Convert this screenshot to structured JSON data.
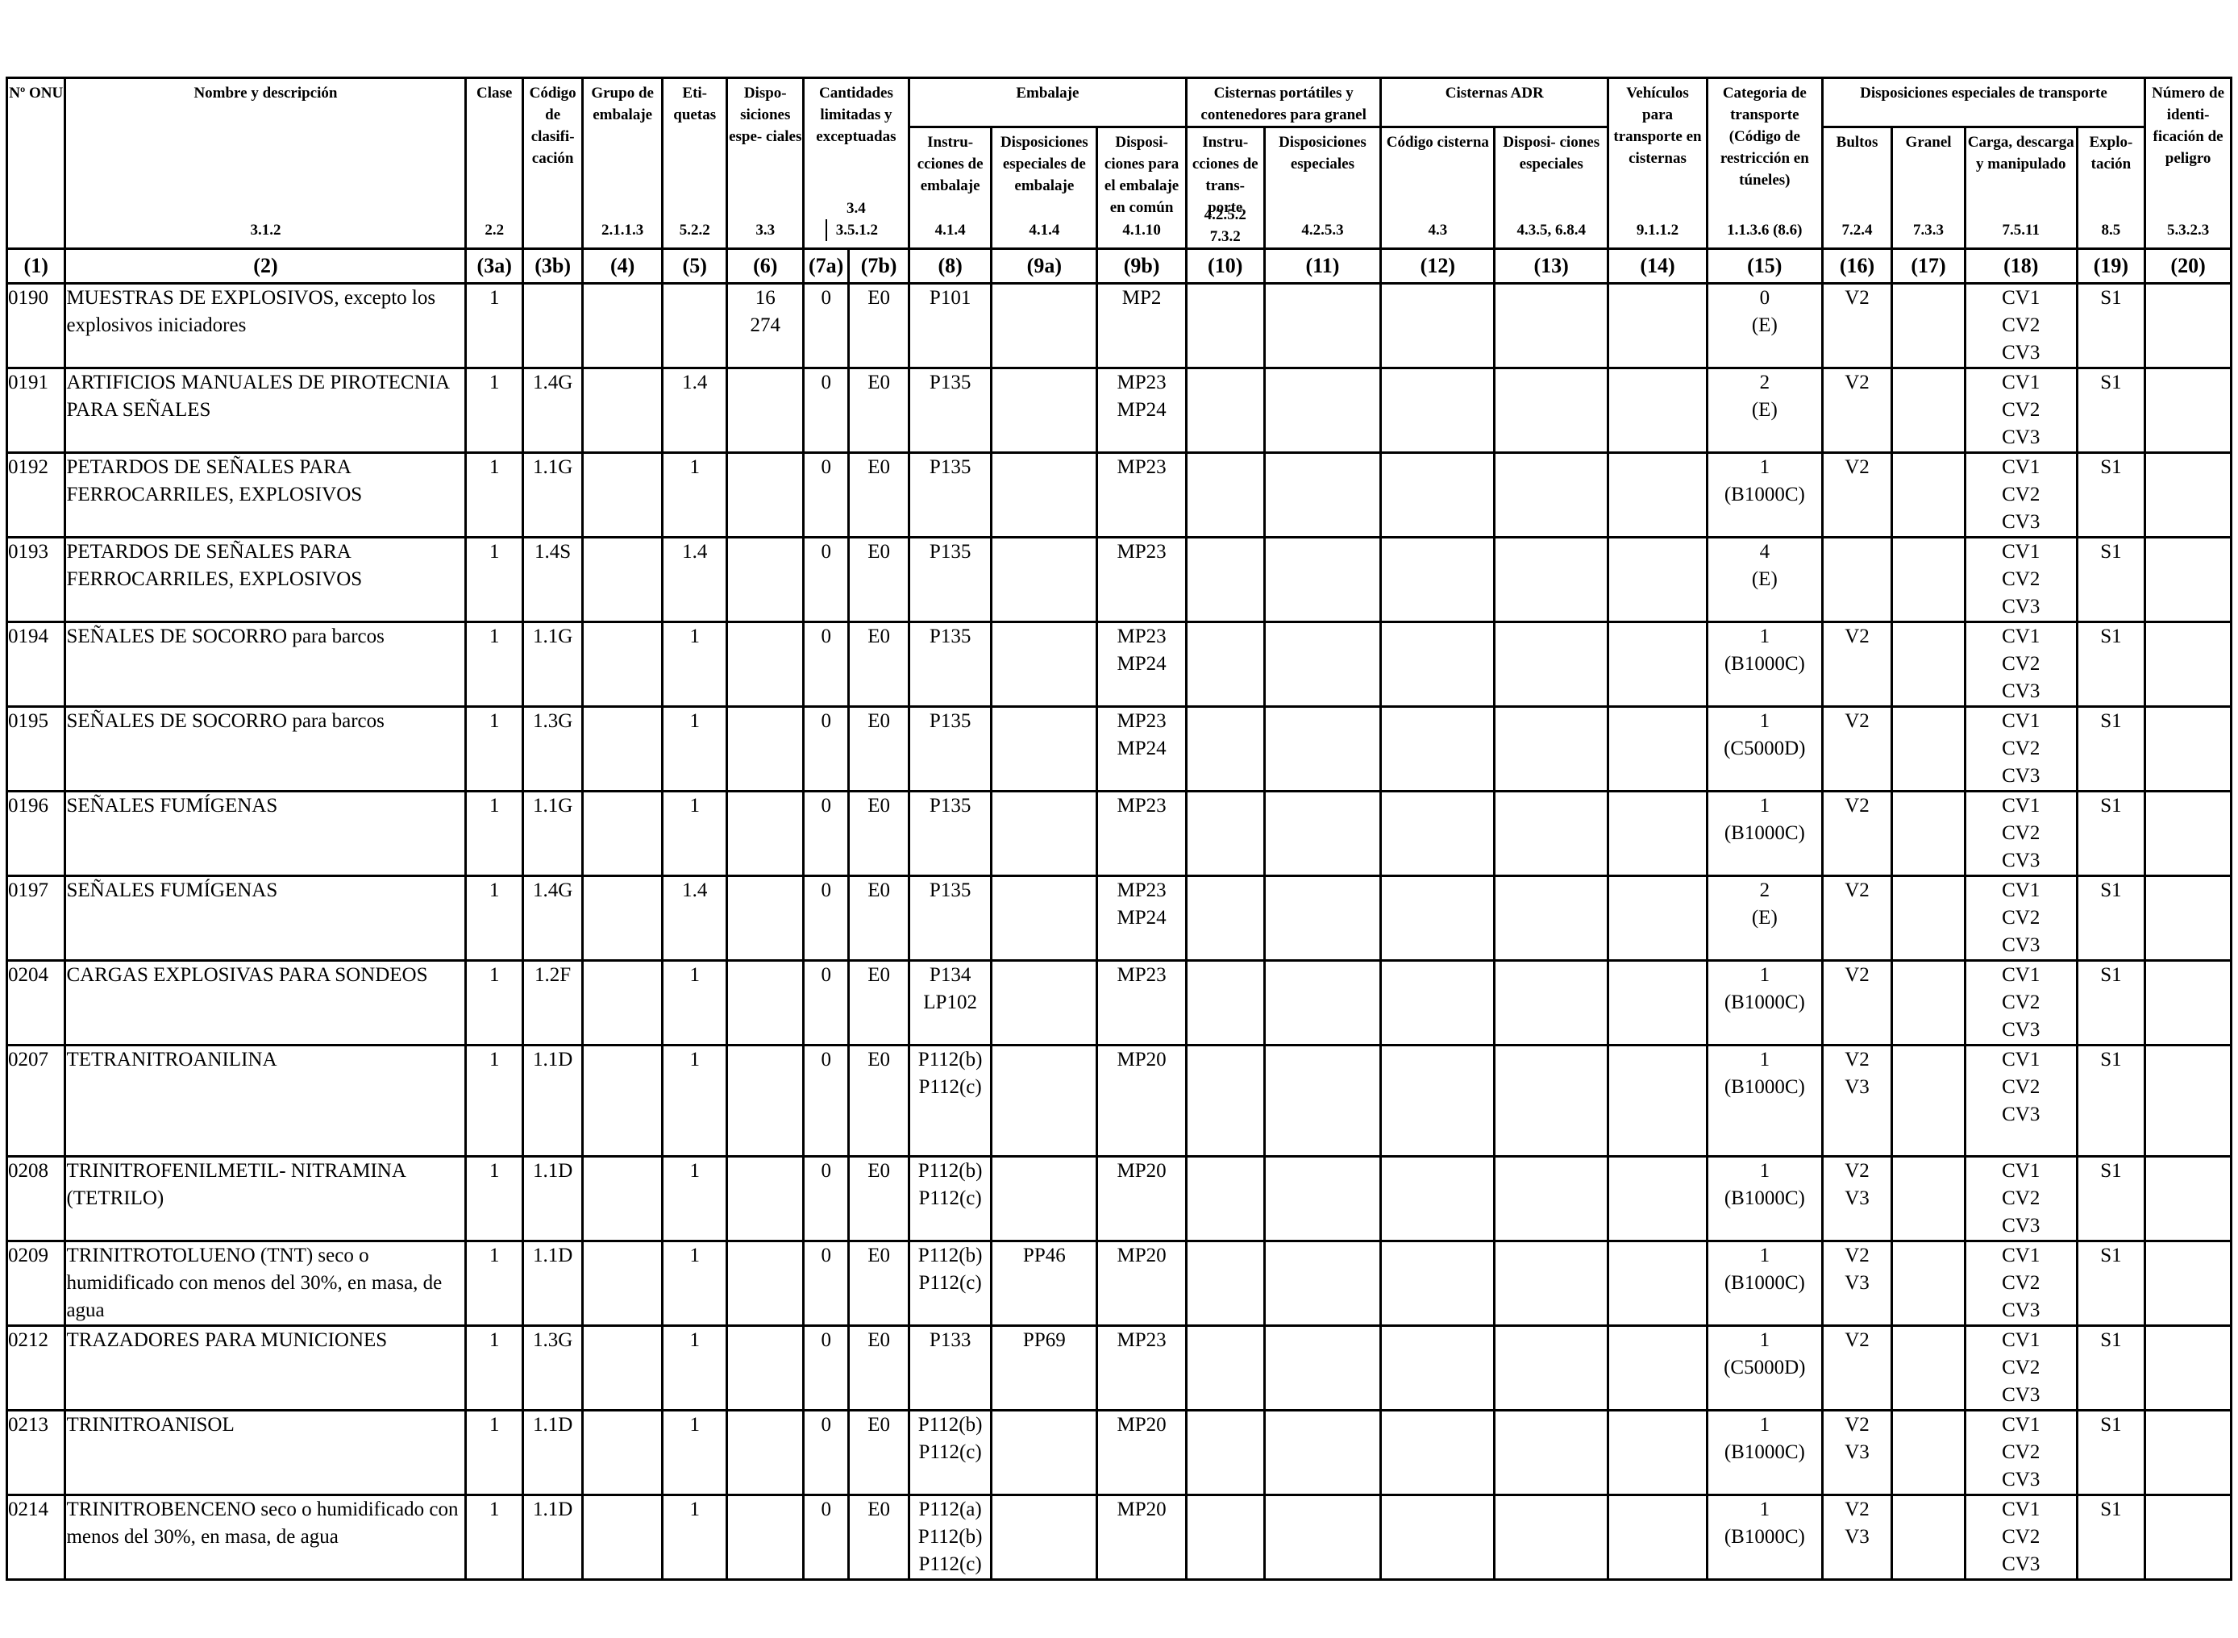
{
  "header": {
    "col1": {
      "title": "Nº ONU",
      "ref": ""
    },
    "col2": {
      "title": "Nombre y descripción",
      "ref": "3.1.2"
    },
    "col3a": {
      "title": "Clase",
      "ref": "2.2"
    },
    "col3b": {
      "title": "Código de clasifi- cación",
      "ref": ""
    },
    "col4": {
      "title": "Grupo de embalaje",
      "ref": "2.1.1.3"
    },
    "col5": {
      "title": "Eti- quetas",
      "ref": "5.2.2"
    },
    "col6": {
      "title": "Dispo- siciones espe- ciales",
      "ref": "3.3"
    },
    "col7": {
      "title": "Cantidades limitadas y exceptuadas",
      "ref_a": "3.4",
      "ref_b": "3.5.1.2"
    },
    "embalaje": {
      "title": "Embalaje"
    },
    "col8": {
      "title": "Instru- cciones de embalaje",
      "ref": "4.1.4"
    },
    "col9a": {
      "title": "Disposiciones especiales de embalaje",
      "ref": "4.1.4"
    },
    "col9b": {
      "title": "Disposi- ciones para el embalaje en común",
      "ref": "4.1.10"
    },
    "cisternas_portatiles": {
      "title": "Cisternas portátiles y contenedores para granel"
    },
    "col10": {
      "title": "Instru- cciones de trans- porte",
      "ref": "4.2.5.2 7.3.2"
    },
    "col11": {
      "title": "Disposiciones especiales",
      "ref": "4.2.5.3"
    },
    "cisternas_adr": {
      "title": "Cisternas ADR"
    },
    "col12": {
      "title": "Código cisterna",
      "ref": "4.3"
    },
    "col13": {
      "title": "Disposi- ciones especiales",
      "ref": "4.3.5, 6.8.4"
    },
    "col14": {
      "title": "Vehículos para transporte en cisternas",
      "ref": "9.1.1.2"
    },
    "col15": {
      "title": "Categoria de transporte (Código de restricción en túneles)",
      "ref": "1.1.3.6 (8.6)"
    },
    "disp_transporte": {
      "title": "Disposiciones especiales de transporte"
    },
    "col16": {
      "title": "Bultos",
      "ref": "7.2.4"
    },
    "col17": {
      "title": "Granel",
      "ref": "7.3.3"
    },
    "col18": {
      "title": "Carga, descarga y manipulado",
      "ref": "7.5.11"
    },
    "col19": {
      "title": "Explo- tación",
      "ref": "8.5"
    },
    "col20": {
      "title": "Número de identi- ficación de peligro",
      "ref": "5.3.2.3"
    }
  },
  "col_numbers": [
    "(1)",
    "(2)",
    "(3a)",
    "(3b)",
    "(4)",
    "(5)",
    "(6)",
    "(7a)",
    "(7b)",
    "(8)",
    "(9a)",
    "(9b)",
    "(10)",
    "(11)",
    "(12)",
    "(13)",
    "(14)",
    "(15)",
    "(16)",
    "(17)",
    "(18)",
    "(19)",
    "(20)"
  ],
  "rows": [
    {
      "un": "0190",
      "name": "MUESTRAS DE EXPLOSIVOS, excepto los explosivos iniciadores",
      "clase": "1",
      "codigo": "",
      "grupo": "",
      "etiquetas": "",
      "disp_esp": "16 274",
      "c7a": "0",
      "c7b": "E0",
      "instr": "P101",
      "disp_emb": "",
      "emb_comun": "MP2",
      "c10": "",
      "c11": "",
      "c12": "",
      "c13": "",
      "c14": "",
      "cat1": "0",
      "cat2": "(E)",
      "bultos": "V2",
      "granel": "",
      "carga": "CV1 CV2 CV3",
      "explot": "S1",
      "num_id": ""
    },
    {
      "un": "0191",
      "name": "ARTIFICIOS MANUALES DE PIROTECNIA PARA SEÑALES",
      "clase": "1",
      "codigo": "1.4G",
      "grupo": "",
      "etiquetas": "1.4",
      "disp_esp": "",
      "c7a": "0",
      "c7b": "E0",
      "instr": "P135",
      "disp_emb": "",
      "emb_comun": "MP23 MP24",
      "c10": "",
      "c11": "",
      "c12": "",
      "c13": "",
      "c14": "",
      "cat1": "2",
      "cat2": "(E)",
      "bultos": "V2",
      "granel": "",
      "carga": "CV1 CV2 CV3",
      "explot": "S1",
      "num_id": ""
    },
    {
      "un": "0192",
      "name": "PETARDOS DE SEÑALES PARA FERROCARRILES, EXPLOSIVOS",
      "clase": "1",
      "codigo": "1.1G",
      "grupo": "",
      "etiquetas": "1",
      "disp_esp": "",
      "c7a": "0",
      "c7b": "E0",
      "instr": "P135",
      "disp_emb": "",
      "emb_comun": "MP23",
      "c10": "",
      "c11": "",
      "c12": "",
      "c13": "",
      "c14": "",
      "cat1": "1",
      "cat2": "(B1000C)",
      "bultos": "V2",
      "granel": "",
      "carga": "CV1 CV2 CV3",
      "explot": "S1",
      "num_id": ""
    },
    {
      "un": "0193",
      "name": "PETARDOS DE SEÑALES PARA FERROCARRILES, EXPLOSIVOS",
      "clase": "1",
      "codigo": "1.4S",
      "grupo": "",
      "etiquetas": "1.4",
      "disp_esp": "",
      "c7a": "0",
      "c7b": "E0",
      "instr": "P135",
      "disp_emb": "",
      "emb_comun": "MP23",
      "c10": "",
      "c11": "",
      "c12": "",
      "c13": "",
      "c14": "",
      "cat1": "4",
      "cat2": "(E)",
      "bultos": "",
      "granel": "",
      "carga": "CV1 CV2 CV3",
      "explot": "S1",
      "num_id": ""
    },
    {
      "un": "0194",
      "name": "SEÑALES DE SOCORRO para barcos",
      "clase": "1",
      "codigo": "1.1G",
      "grupo": "",
      "etiquetas": "1",
      "disp_esp": "",
      "c7a": "0",
      "c7b": "E0",
      "instr": "P135",
      "disp_emb": "",
      "emb_comun": "MP23 MP24",
      "c10": "",
      "c11": "",
      "c12": "",
      "c13": "",
      "c14": "",
      "cat1": "1",
      "cat2": "(B1000C)",
      "bultos": "V2",
      "granel": "",
      "carga": "CV1 CV2 CV3",
      "explot": "S1",
      "num_id": ""
    },
    {
      "un": "0195",
      "name": "SEÑALES DE SOCORRO para barcos",
      "clase": "1",
      "codigo": "1.3G",
      "grupo": "",
      "etiquetas": "1",
      "disp_esp": "",
      "c7a": "0",
      "c7b": "E0",
      "instr": "P135",
      "disp_emb": "",
      "emb_comun": "MP23 MP24",
      "c10": "",
      "c11": "",
      "c12": "",
      "c13": "",
      "c14": "",
      "cat1": "1",
      "cat2": "(C5000D)",
      "bultos": "V2",
      "granel": "",
      "carga": "CV1 CV2 CV3",
      "explot": "S1",
      "num_id": ""
    },
    {
      "un": "0196",
      "name": "SEÑALES FUMÍGENAS",
      "clase": "1",
      "codigo": "1.1G",
      "grupo": "",
      "etiquetas": "1",
      "disp_esp": "",
      "c7a": "0",
      "c7b": "E0",
      "instr": "P135",
      "disp_emb": "",
      "emb_comun": "MP23",
      "c10": "",
      "c11": "",
      "c12": "",
      "c13": "",
      "c14": "",
      "cat1": "1",
      "cat2": "(B1000C)",
      "bultos": "V2",
      "granel": "",
      "carga": "CV1 CV2 CV3",
      "explot": "S1",
      "num_id": ""
    },
    {
      "un": "0197",
      "name": "SEÑALES FUMÍGENAS",
      "clase": "1",
      "codigo": "1.4G",
      "grupo": "",
      "etiquetas": "1.4",
      "disp_esp": "",
      "c7a": "0",
      "c7b": "E0",
      "instr": "P135",
      "disp_emb": "",
      "emb_comun": "MP23 MP24",
      "c10": "",
      "c11": "",
      "c12": "",
      "c13": "",
      "c14": "",
      "cat1": "2",
      "cat2": "(E)",
      "bultos": "V2",
      "granel": "",
      "carga": "CV1 CV2 CV3",
      "explot": "S1",
      "num_id": ""
    },
    {
      "un": "0204",
      "name": "CARGAS EXPLOSIVAS PARA SONDEOS",
      "clase": "1",
      "codigo": "1.2F",
      "grupo": "",
      "etiquetas": "1",
      "disp_esp": "",
      "c7a": "0",
      "c7b": "E0",
      "instr": "P134 LP102",
      "disp_emb": "",
      "emb_comun": "MP23",
      "c10": "",
      "c11": "",
      "c12": "",
      "c13": "",
      "c14": "",
      "cat1": "1",
      "cat2": "(B1000C)",
      "bultos": "V2",
      "granel": "",
      "carga": "CV1 CV2 CV3",
      "explot": "S1",
      "num_id": ""
    },
    {
      "un": "0207",
      "name": "TETRANITROANILINA",
      "clase": "1",
      "codigo": "1.1D",
      "grupo": "",
      "etiquetas": "1",
      "disp_esp": "",
      "c7a": "0",
      "c7b": "E0",
      "instr": "P112(b) P112(c)",
      "disp_emb": "",
      "emb_comun": "MP20",
      "c10": "",
      "c11": "",
      "c12": "",
      "c13": "",
      "c14": "",
      "cat1": "1",
      "cat2": "(B1000C)",
      "bultos": "V2 V3",
      "granel": "",
      "carga": "CV1 CV2 CV3",
      "explot": "S1",
      "num_id": ""
    },
    {
      "un": "0208",
      "name": "TRINITROFENILMETIL- NITRAMINA (TETRILO)",
      "clase": "1",
      "codigo": "1.1D",
      "grupo": "",
      "etiquetas": "1",
      "disp_esp": "",
      "c7a": "0",
      "c7b": "E0",
      "instr": "P112(b) P112(c)",
      "disp_emb": "",
      "emb_comun": "MP20",
      "c10": "",
      "c11": "",
      "c12": "",
      "c13": "",
      "c14": "",
      "cat1": "1",
      "cat2": "(B1000C)",
      "bultos": "V2 V3",
      "granel": "",
      "carga": "CV1 CV2 CV3",
      "explot": "S1",
      "num_id": ""
    },
    {
      "un": "0209",
      "name": "TRINITROTOLUENO (TNT) seco o humidificado con menos del 30%, en masa, de agua",
      "clase": "1",
      "codigo": "1.1D",
      "grupo": "",
      "etiquetas": "1",
      "disp_esp": "",
      "c7a": "0",
      "c7b": "E0",
      "instr": "P112(b) P112(c)",
      "disp_emb": "PP46",
      "emb_comun": "MP20",
      "c10": "",
      "c11": "",
      "c12": "",
      "c13": "",
      "c14": "",
      "cat1": "1",
      "cat2": "(B1000C)",
      "bultos": "V2 V3",
      "granel": "",
      "carga": "CV1 CV2 CV3",
      "explot": "S1",
      "num_id": ""
    },
    {
      "un": "0212",
      "name": "TRAZADORES PARA MUNICIONES",
      "clase": "1",
      "codigo": "1.3G",
      "grupo": "",
      "etiquetas": "1",
      "disp_esp": "",
      "c7a": "0",
      "c7b": "E0",
      "instr": "P133",
      "disp_emb": "PP69",
      "emb_comun": "MP23",
      "c10": "",
      "c11": "",
      "c12": "",
      "c13": "",
      "c14": "",
      "cat1": "1",
      "cat2": "(C5000D)",
      "bultos": "V2",
      "granel": "",
      "carga": "CV1 CV2 CV3",
      "explot": "S1",
      "num_id": ""
    },
    {
      "un": "0213",
      "name": "TRINITROANISOL",
      "clase": "1",
      "codigo": "1.1D",
      "grupo": "",
      "etiquetas": "1",
      "disp_esp": "",
      "c7a": "0",
      "c7b": "E0",
      "instr": "P112(b) P112(c)",
      "disp_emb": "",
      "emb_comun": "MP20",
      "c10": "",
      "c11": "",
      "c12": "",
      "c13": "",
      "c14": "",
      "cat1": "1",
      "cat2": "(B1000C)",
      "bultos": "V2 V3",
      "granel": "",
      "carga": "CV1 CV2 CV3",
      "explot": "S1",
      "num_id": ""
    },
    {
      "un": "0214",
      "name": "TRINITROBENCENO seco o humidificado con menos del 30%, en masa, de agua",
      "clase": "1",
      "codigo": "1.1D",
      "grupo": "",
      "etiquetas": "1",
      "disp_esp": "",
      "c7a": "0",
      "c7b": "E0",
      "instr": "P112(a) P112(b) P112(c)",
      "disp_emb": "",
      "emb_comun": "MP20",
      "c10": "",
      "c11": "",
      "c12": "",
      "c13": "",
      "c14": "",
      "cat1": "1",
      "cat2": "(B1000C)",
      "bultos": "V2 V3",
      "granel": "",
      "carga": "CV1 CV2 CV3",
      "explot": "S1",
      "num_id": ""
    }
  ]
}
